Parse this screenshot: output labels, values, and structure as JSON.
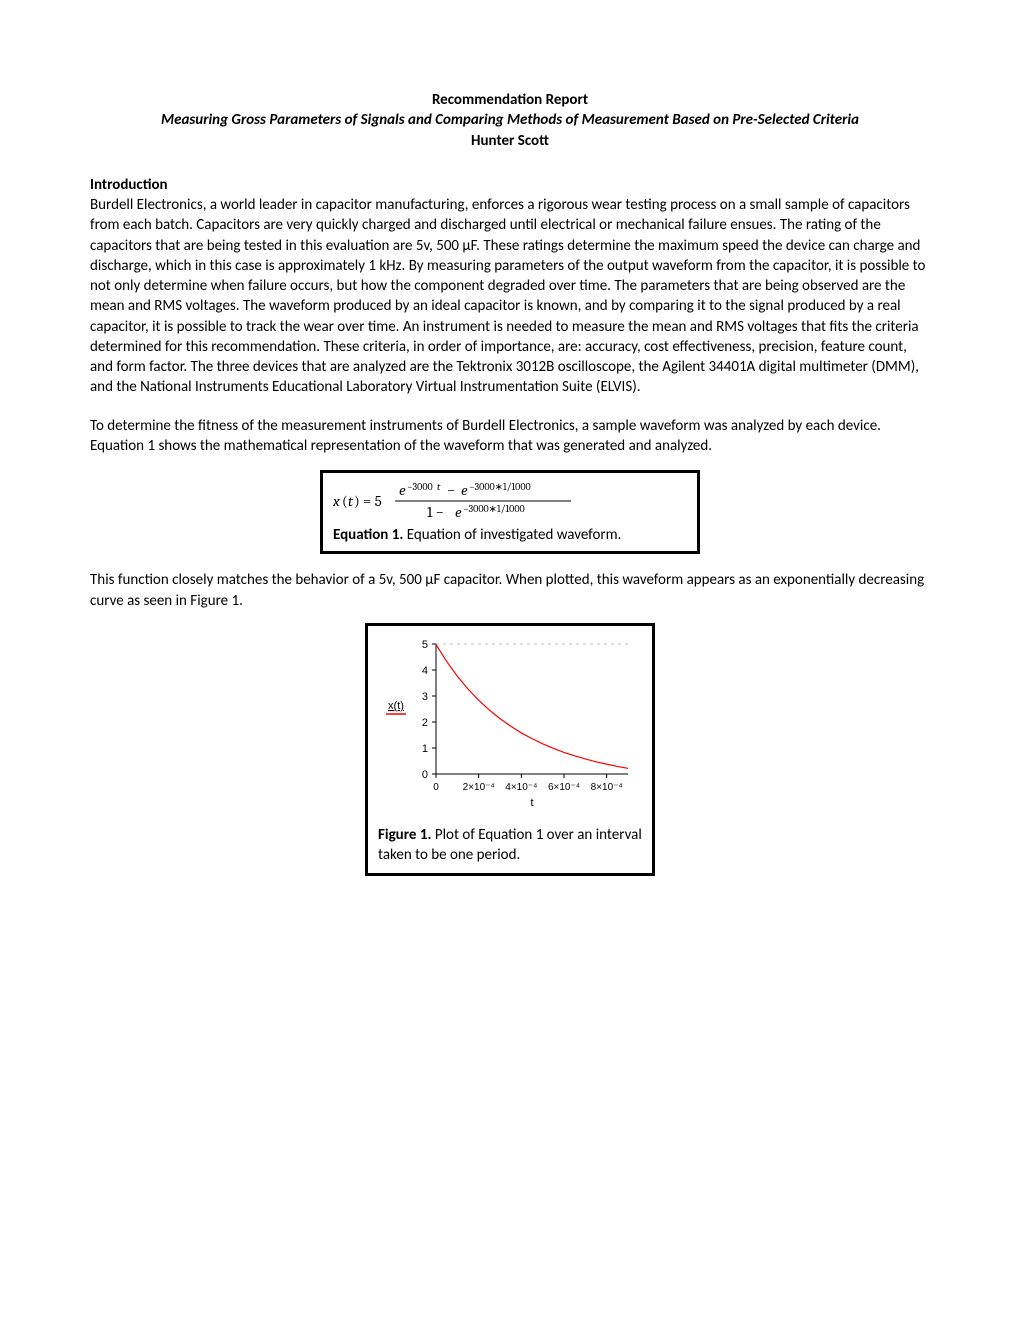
{
  "header": {
    "report_type": "Recommendation Report",
    "subtitle": "Measuring Gross Parameters of Signals and Comparing Methods of Measurement Based on Pre-Selected Criteria",
    "author": "Hunter Scott"
  },
  "intro": {
    "heading": "Introduction",
    "para1": "Burdell Electronics, a world leader in capacitor manufacturing, enforces a rigorous wear testing process on a small sample of capacitors from each batch. Capacitors are very quickly charged and discharged until electrical or mechanical failure ensues. The rating of the capacitors that are being tested in this evaluation are 5v, 500 µF. These ratings determine the maximum speed the device can charge and discharge, which in this case is approximately 1 kHz. By measuring parameters of the output waveform from the capacitor, it is possible to not only determine when failure occurs, but how the component degraded over time. The parameters that are being observed are the mean and RMS voltages. The waveform produced by an ideal capacitor is known, and by comparing it to the signal produced by a real capacitor, it is possible to track the wear over time. An instrument is needed to measure the mean and RMS voltages that fits the criteria determined for this recommendation. These criteria, in order of importance, are: accuracy, cost effectiveness, precision, feature count, and form factor. The three devices that are analyzed are the Tektronix 3012B oscilloscope, the Agilent 34401A digital multimeter (DMM), and the National Instruments Educational Laboratory Virtual Instrumentation Suite (ELVIS).",
    "para2": "To determine the fitness of the measurement instruments of Burdell Electronics, a sample waveform was analyzed by each device. Equation 1 shows the mathematical representation of the waveform that was generated and analyzed.",
    "para3": "This function closely matches the behavior of a 5v, 500 µF capacitor. When plotted, this waveform appears as an exponentially decreasing curve as seen in Figure 1."
  },
  "equation": {
    "lhs": "x(t) = 5",
    "numer": "e⁻³⁰⁰⁰ᵗ − e⁻³⁰⁰⁰∗¹⸍¹⁰⁰⁰",
    "denom": "1 − e⁻³⁰⁰⁰∗¹⸍¹⁰⁰⁰",
    "caption_label": "Equation 1.",
    "caption_text": " Equation of investigated waveform.",
    "text_color": "#000000",
    "box_border_color": "#000000"
  },
  "figure": {
    "caption_label": "Figure 1.",
    "caption_text": " Plot of Equation 1 over an interval taken to be one period.",
    "chart": {
      "type": "line",
      "y_label": "x(t)",
      "y_label_color": "#ff0000",
      "y_label_underline_color": "#ff0000",
      "x_label": "t",
      "xlim": [
        0,
        0.0009
      ],
      "ylim": [
        0,
        5
      ],
      "y_ticks": [
        0,
        1,
        2,
        3,
        4,
        5
      ],
      "x_ticks": [
        0,
        0.0002,
        0.0004,
        0.0006,
        0.0008
      ],
      "x_tick_labels": [
        "0",
        "2×10⁻⁴",
        "4×10⁻⁴",
        "6×10⁻⁴",
        "8×10⁻⁴"
      ],
      "line_color": "#ff0000",
      "axis_color": "#000000",
      "grid_color": "#c0c0c0",
      "background_color": "#ffffff",
      "curve": [
        [
          0,
          4.98
        ],
        [
          5e-05,
          4.33
        ],
        [
          0.0001,
          3.76
        ],
        [
          0.00015,
          3.27
        ],
        [
          0.0002,
          2.84
        ],
        [
          0.00025,
          2.46
        ],
        [
          0.0003,
          2.13
        ],
        [
          0.00035,
          1.84
        ],
        [
          0.0004,
          1.58
        ],
        [
          0.00045,
          1.36
        ],
        [
          0.0005,
          1.16
        ],
        [
          0.00055,
          0.99
        ],
        [
          0.0006,
          0.83
        ],
        [
          0.00065,
          0.7
        ],
        [
          0.0007,
          0.58
        ],
        [
          0.00075,
          0.47
        ],
        [
          0.0008,
          0.38
        ],
        [
          0.00085,
          0.29
        ],
        [
          0.0009,
          0.22
        ]
      ]
    }
  }
}
